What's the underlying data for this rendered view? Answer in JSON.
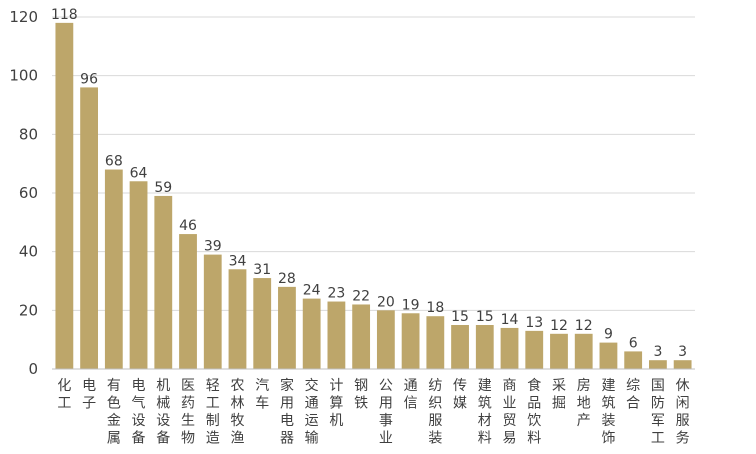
{
  "chart_data": {
    "type": "bar",
    "title": "",
    "xlabel": "",
    "ylabel": "",
    "ylim": [
      0,
      120
    ],
    "yticks": [
      0,
      20,
      40,
      60,
      80,
      100,
      120
    ],
    "grid": true,
    "legend": "none",
    "bar_color": "#bda66a",
    "categories": [
      "化工",
      "电子",
      "有色金属",
      "电气设备",
      "机械设备",
      "医药生物",
      "轻工制造",
      "农林牧渔",
      "汽车",
      "家用电器",
      "交通运输",
      "计算机",
      "钢铁",
      "公用事业",
      "通信",
      "纺织服装",
      "传媒",
      "建筑材料",
      "商业贸易",
      "食品饮料",
      "采掘",
      "房地产",
      "建筑装饰",
      "综合",
      "国防军工",
      "休闲服务"
    ],
    "values": [
      118,
      96,
      68,
      64,
      59,
      46,
      39,
      34,
      31,
      28,
      24,
      23,
      22,
      20,
      19,
      18,
      15,
      15,
      14,
      13,
      12,
      12,
      9,
      6,
      3,
      3
    ]
  }
}
